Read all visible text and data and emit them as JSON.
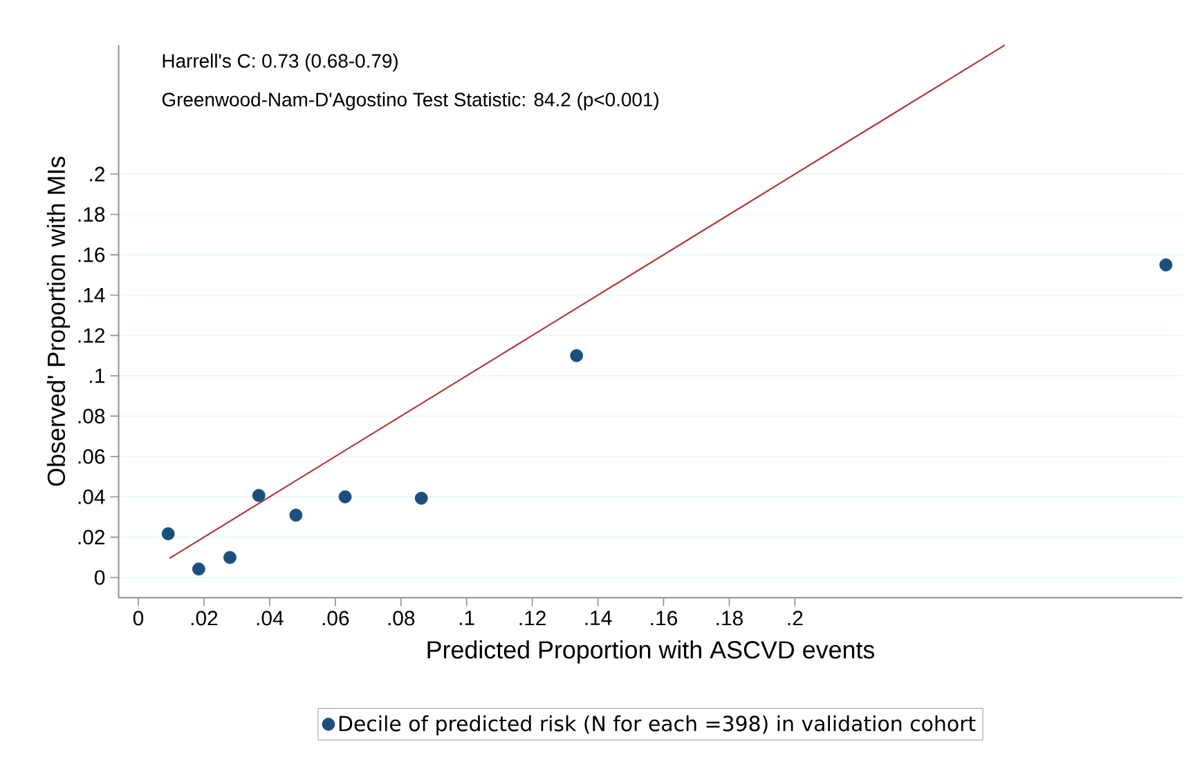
{
  "chart_data": {
    "type": "scatter",
    "xlabel": "Predicted Proportion with ASCVD events",
    "ylabel": "Observed' Proportion with MIs",
    "annotations": [
      "Harrell's C: 0.73 (0.68-0.79)",
      "Greenwood-Nam-D'Agostino Test Statistic: 84.2 (p<0.001)"
    ],
    "x": [
      0.0091,
      0.0184,
      0.0279,
      0.0367,
      0.048,
      0.063,
      0.0862,
      0.1335,
      0.313
    ],
    "series": [
      {
        "name": "Decile of predicted risk (N for each =398) in validation cohort",
        "marker": "circle",
        "color": "#1b4f7e",
        "values": [
          0.0217,
          0.0042,
          0.0099,
          0.0407,
          0.0309,
          0.04,
          0.0393,
          0.11,
          0.155
        ]
      },
      {
        "type": "line",
        "marker": "none",
        "color": "#b03a3e",
        "x": [
          0.0095,
          0.264
        ],
        "values": [
          0.0095,
          0.264
        ]
      }
    ],
    "grid": "y",
    "legend": "bottom",
    "xlim": [
      -0.006,
      0.318
    ],
    "ylim": [
      -0.01,
      0.264
    ],
    "xticks": [
      0,
      {
        "value": 0.02,
        "label": ".02"
      },
      {
        "value": 0.04,
        "label": ".04"
      },
      {
        "value": 0.06,
        "label": ".06"
      },
      {
        "value": 0.08,
        "label": ".08"
      },
      {
        "value": 0.1,
        "label": ".1"
      },
      {
        "value": 0.12,
        "label": ".12"
      },
      {
        "value": 0.14,
        "label": ".14"
      },
      {
        "value": 0.16,
        "label": ".16"
      },
      {
        "value": 0.18,
        "label": ".18"
      },
      {
        "value": 0.2,
        "label": ".2"
      }
    ],
    "yticks": [
      0,
      {
        "value": 0.02,
        "label": ".02"
      },
      {
        "value": 0.04,
        "label": ".04"
      },
      {
        "value": 0.06,
        "label": ".06"
      },
      {
        "value": 0.08,
        "label": ".08"
      },
      {
        "value": 0.1,
        "label": ".1"
      },
      {
        "value": 0.12,
        "label": ".12"
      },
      {
        "value": 0.14,
        "label": ".14"
      },
      {
        "value": 0.16,
        "label": ".16"
      },
      {
        "value": 0.18,
        "label": ".18"
      },
      {
        "value": 0.2,
        "label": ".2"
      }
    ]
  }
}
